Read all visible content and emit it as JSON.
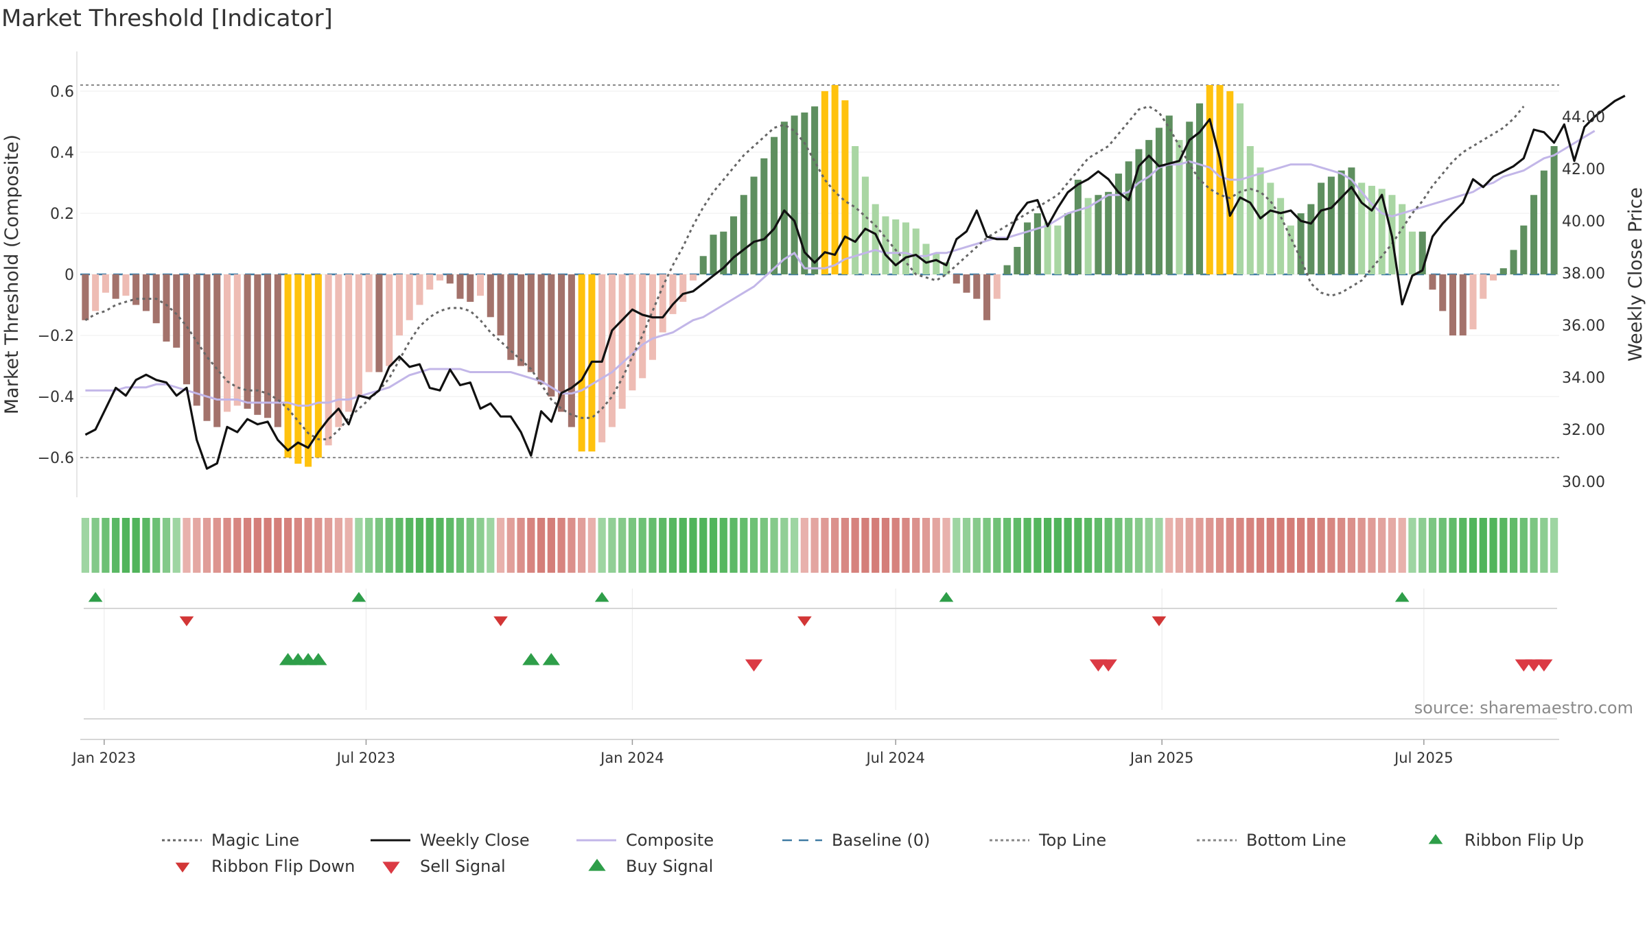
{
  "chart_data": {
    "type": "bar",
    "title": "Market Threshold [Indicator]",
    "ylabel": "Market Threshold (Composite)",
    "y2label": "Weekly Close Price",
    "ylim": [
      -0.73,
      0.73
    ],
    "y2lim": [
      29.4,
      46.5
    ],
    "left_ticks": [
      0.6,
      0.4,
      0.2,
      0,
      -0.2,
      -0.4,
      -0.6
    ],
    "left_tick_labels": [
      "0.6",
      "0.4",
      "0.2",
      "0",
      "−0.2",
      "−0.4",
      "−0.6"
    ],
    "right_ticks": [
      44,
      42,
      40,
      38,
      36,
      34,
      32,
      30
    ],
    "right_tick_labels": [
      "44.00",
      "42.00",
      "40.00",
      "38.00",
      "36.00",
      "34.00",
      "32.00",
      "30.00"
    ],
    "x_start": "2022-12-19",
    "week_count": 146,
    "date_ticks": [
      {
        "label": "Jan 2023",
        "date": "2023-01-01"
      },
      {
        "label": "Jul 2023",
        "date": "2023-07-01"
      },
      {
        "label": "Jan 2024",
        "date": "2024-01-01"
      },
      {
        "label": "Jul 2024",
        "date": "2024-07-01"
      },
      {
        "label": "Jan 2025",
        "date": "2025-01-01"
      },
      {
        "label": "Jul 2025",
        "date": "2025-07-01"
      }
    ],
    "top_line": 0.62,
    "bottom_line": -0.6,
    "baseline": 0,
    "composite_bars": [
      -0.15,
      -0.12,
      -0.06,
      -0.08,
      -0.07,
      -0.1,
      -0.12,
      -0.16,
      -0.22,
      -0.24,
      -0.36,
      -0.43,
      -0.48,
      -0.5,
      -0.45,
      -0.43,
      -0.44,
      -0.46,
      -0.47,
      -0.5,
      -0.6,
      -0.62,
      -0.63,
      -0.6,
      -0.56,
      -0.5,
      -0.45,
      -0.4,
      -0.32,
      -0.32,
      -0.3,
      -0.2,
      -0.15,
      -0.1,
      -0.05,
      -0.02,
      -0.03,
      -0.08,
      -0.09,
      -0.07,
      -0.14,
      -0.2,
      -0.28,
      -0.3,
      -0.32,
      -0.36,
      -0.4,
      -0.45,
      -0.5,
      -0.58,
      -0.58,
      -0.55,
      -0.5,
      -0.44,
      -0.38,
      -0.34,
      -0.28,
      -0.19,
      -0.13,
      -0.09,
      -0.02,
      0.06,
      0.13,
      0.14,
      0.19,
      0.26,
      0.32,
      0.38,
      0.45,
      0.5,
      0.52,
      0.53,
      0.55,
      0.6,
      0.62,
      0.57,
      0.42,
      0.32,
      0.23,
      0.19,
      0.18,
      0.17,
      0.15,
      0.1,
      0.07,
      0.04,
      -0.03,
      -0.06,
      -0.08,
      -0.15,
      -0.08,
      0.03,
      0.09,
      0.17,
      0.2,
      0.17,
      0.16,
      0.2,
      0.31,
      0.25,
      0.26,
      0.27,
      0.33,
      0.37,
      0.41,
      0.44,
      0.48,
      0.52,
      0.44,
      0.5,
      0.56,
      0.62,
      0.62,
      0.6,
      0.56,
      0.42,
      0.35,
      0.3,
      0.25,
      0.16,
      0.2,
      0.23,
      0.3,
      0.32,
      0.34,
      0.35,
      0.3,
      0.29,
      0.28,
      0.26,
      0.23,
      0.14,
      0.14,
      -0.05,
      -0.12,
      -0.2,
      -0.2,
      -0.18,
      -0.08,
      -0.02,
      0.02,
      0.08,
      0.16,
      0.26,
      0.34,
      0.42
    ],
    "bar_extension": [
      0.49,
      0.53,
      0.58,
      0.55,
      0.52,
      0.55,
      0.57,
      0.58,
      0.6,
      0.62,
      0.57,
      0.62,
      0.66
    ],
    "weekly_close": [
      31.8,
      32.0,
      32.8,
      33.6,
      33.3,
      33.9,
      34.1,
      33.9,
      33.8,
      33.3,
      33.6,
      31.6,
      30.5,
      30.7,
      32.1,
      31.9,
      32.4,
      32.2,
      32.3,
      31.6,
      31.2,
      31.5,
      31.3,
      31.9,
      32.4,
      32.8,
      32.2,
      33.3,
      33.2,
      33.5,
      34.4,
      34.8,
      34.4,
      34.5,
      33.6,
      33.5,
      34.3,
      33.7,
      33.8,
      32.8,
      33.0,
      32.5,
      32.5,
      31.9,
      31.0,
      32.7,
      32.3,
      33.4,
      33.6,
      33.9,
      34.6,
      34.6,
      35.8,
      36.2,
      36.6,
      36.4,
      36.3,
      36.3,
      36.8,
      37.2,
      37.3,
      37.6,
      37.9,
      38.2,
      38.6,
      38.9,
      39.2,
      39.3,
      39.7,
      40.4,
      40.0,
      38.8,
      38.4,
      38.8,
      38.7,
      39.4,
      39.2,
      39.7,
      39.5,
      38.7,
      38.3,
      38.6,
      38.7,
      38.4,
      38.5,
      38.3,
      39.3,
      39.6,
      40.4,
      39.4,
      39.3,
      39.3,
      40.2,
      40.7,
      40.8,
      39.8,
      40.5,
      41.1,
      41.4,
      41.6,
      41.9,
      41.6,
      41.1,
      40.8,
      42.1,
      42.5,
      42.1,
      42.2,
      42.3,
      43.1,
      43.4,
      43.9,
      42.4,
      40.2,
      40.9,
      40.7,
      40.1,
      40.4,
      40.3,
      40.4,
      40.0,
      39.9,
      40.4,
      40.5,
      40.9,
      41.3,
      40.7,
      40.4,
      41.0,
      39.4,
      36.8,
      37.9,
      38.1,
      39.4,
      39.9,
      40.3,
      40.7,
      41.6,
      41.3,
      41.7,
      41.9,
      42.1,
      42.4,
      43.5,
      43.4,
      43.0,
      43.7,
      42.3,
      43.6,
      44.0,
      44.3,
      44.6,
      44.8
    ],
    "composite_line": [
      -0.38,
      -0.38,
      -0.38,
      -0.38,
      -0.37,
      -0.37,
      -0.37,
      -0.36,
      -0.36,
      -0.37,
      -0.38,
      -0.39,
      -0.4,
      -0.41,
      -0.41,
      -0.41,
      -0.42,
      -0.42,
      -0.42,
      -0.42,
      -0.42,
      -0.43,
      -0.43,
      -0.42,
      -0.42,
      -0.41,
      -0.41,
      -0.4,
      -0.39,
      -0.38,
      -0.37,
      -0.35,
      -0.33,
      -0.32,
      -0.31,
      -0.31,
      -0.31,
      -0.31,
      -0.32,
      -0.32,
      -0.32,
      -0.32,
      -0.32,
      -0.33,
      -0.34,
      -0.35,
      -0.37,
      -0.39,
      -0.39,
      -0.38,
      -0.36,
      -0.34,
      -0.32,
      -0.29,
      -0.26,
      -0.23,
      -0.21,
      -0.2,
      -0.19,
      -0.17,
      -0.15,
      -0.14,
      -0.12,
      -0.1,
      -0.08,
      -0.06,
      -0.04,
      -0.01,
      0.02,
      0.05,
      0.07,
      0.02,
      0.02,
      0.02,
      0.03,
      0.05,
      0.06,
      0.07,
      0.08,
      0.07,
      0.07,
      0.07,
      0.06,
      0.06,
      0.07,
      0.07,
      0.08,
      0.09,
      0.1,
      0.11,
      0.12,
      0.12,
      0.13,
      0.14,
      0.15,
      0.16,
      0.18,
      0.2,
      0.21,
      0.22,
      0.24,
      0.26,
      0.26,
      0.27,
      0.3,
      0.32,
      0.35,
      0.36,
      0.36,
      0.37,
      0.36,
      0.35,
      0.32,
      0.31,
      0.31,
      0.32,
      0.33,
      0.34,
      0.35,
      0.36,
      0.36,
      0.36,
      0.35,
      0.34,
      0.33,
      0.31,
      0.27,
      0.23,
      0.2,
      0.19,
      0.2,
      0.21,
      0.22,
      0.23,
      0.24,
      0.25,
      0.26,
      0.27,
      0.29,
      0.3,
      0.32,
      0.33,
      0.34,
      0.36,
      0.38,
      0.39,
      0.41,
      0.43,
      0.45,
      0.47
    ],
    "magic_line": [
      -0.15,
      -0.13,
      -0.12,
      -0.1,
      -0.09,
      -0.08,
      -0.08,
      -0.08,
      -0.1,
      -0.13,
      -0.17,
      -0.22,
      -0.27,
      -0.31,
      -0.35,
      -0.37,
      -0.38,
      -0.38,
      -0.39,
      -0.41,
      -0.44,
      -0.48,
      -0.52,
      -0.54,
      -0.54,
      -0.51,
      -0.47,
      -0.44,
      -0.41,
      -0.38,
      -0.34,
      -0.28,
      -0.22,
      -0.17,
      -0.14,
      -0.12,
      -0.11,
      -0.11,
      -0.12,
      -0.15,
      -0.19,
      -0.22,
      -0.25,
      -0.28,
      -0.31,
      -0.36,
      -0.41,
      -0.44,
      -0.46,
      -0.47,
      -0.47,
      -0.44,
      -0.4,
      -0.34,
      -0.27,
      -0.2,
      -0.12,
      -0.04,
      0.03,
      0.09,
      0.16,
      0.22,
      0.27,
      0.31,
      0.35,
      0.39,
      0.42,
      0.45,
      0.48,
      0.49,
      0.47,
      0.43,
      0.37,
      0.31,
      0.27,
      0.24,
      0.22,
      0.19,
      0.16,
      0.12,
      0.08,
      0.04,
      0.0,
      -0.01,
      -0.02,
      0.0,
      0.03,
      0.06,
      0.09,
      0.12,
      0.14,
      0.16,
      0.18,
      0.2,
      0.22,
      0.24,
      0.26,
      0.3,
      0.34,
      0.38,
      0.4,
      0.42,
      0.46,
      0.5,
      0.54,
      0.55,
      0.53,
      0.48,
      0.42,
      0.36,
      0.31,
      0.28,
      0.26,
      0.25,
      0.27,
      0.28,
      0.27,
      0.24,
      0.19,
      0.12,
      0.05,
      -0.03,
      -0.06,
      -0.07,
      -0.06,
      -0.04,
      -0.02,
      0.02,
      0.06,
      0.1,
      0.15,
      0.2,
      0.24,
      0.29,
      0.33,
      0.37,
      0.4,
      0.42,
      0.44,
      0.46,
      0.48,
      0.51,
      0.55
    ]
  },
  "ribbon": {
    "segments": [
      {
        "from": 0,
        "to": 9,
        "tone": "green"
      },
      {
        "from": 10,
        "to": 26,
        "tone": "red"
      },
      {
        "from": 27,
        "to": 40,
        "tone": "green"
      },
      {
        "from": 41,
        "to": 50,
        "tone": "red"
      },
      {
        "from": 51,
        "to": 70,
        "tone": "green"
      },
      {
        "from": 71,
        "to": 85,
        "tone": "red"
      },
      {
        "from": 86,
        "to": 106,
        "tone": "green"
      },
      {
        "from": 107,
        "to": 130,
        "tone": "red"
      },
      {
        "from": 131,
        "to": 145,
        "tone": "green"
      }
    ]
  },
  "signals": {
    "ribbon_flip_up": [
      1,
      27,
      51,
      85,
      130
    ],
    "ribbon_flip_down": [
      10,
      41,
      71,
      106
    ],
    "buy": [
      20,
      21,
      22,
      23,
      44,
      46
    ],
    "sell": [
      66,
      100,
      101,
      142,
      143,
      144
    ]
  },
  "colors": {
    "pos_dark": "#5e8f5f",
    "pos_light": "#a9d6a3",
    "neg_dark": "#a3726b",
    "neg_light": "#eebcb4",
    "extreme": "#ffc20e",
    "close_line": "#111111",
    "composite_line": "#c2b6e8",
    "magic_line": "#666666",
    "baseline": "#3f7ba3",
    "threshold_lines": "#888888",
    "buy_marker": "#2e9e49",
    "sell_marker": "#db3a44",
    "flip_up_marker": "#2e9e49",
    "flip_down_marker": "#d23636"
  },
  "legend": [
    {
      "label": "Magic Line",
      "icon": "dotted-line"
    },
    {
      "label": "Weekly Close",
      "icon": "solid-line"
    },
    {
      "label": "Composite",
      "icon": "solid-lavender-line"
    },
    {
      "label": "Baseline (0)",
      "icon": "dashed-line"
    },
    {
      "label": "Top Line",
      "icon": "dotted-line"
    },
    {
      "label": "Bottom Line",
      "icon": "dotted-line"
    },
    {
      "label": "Ribbon Flip Up",
      "icon": "triangle-up-icon"
    },
    {
      "label": "Ribbon Flip Down",
      "icon": "triangle-down-icon"
    },
    {
      "label": "Sell Signal",
      "icon": "triangle-down-icon"
    },
    {
      "label": "Buy Signal",
      "icon": "triangle-up-icon"
    }
  ],
  "source": "source: sharemaestro.com"
}
